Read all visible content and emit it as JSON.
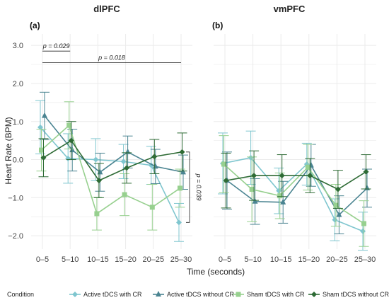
{
  "colors": {
    "active_with_cr": "#7fc6cf",
    "active_without_cr": "#4a8491",
    "sham_with_cr": "#97d08f",
    "sham_without_cr": "#2e6b35",
    "grid": "#ebebeb",
    "text": "#222222"
  },
  "legend": {
    "title": "Condition",
    "placement": "bottom"
  },
  "chart_data": {
    "type": "line",
    "grid": true,
    "ylabel": "Heart Rate (BPM)",
    "xlabel": "Time (seconds)",
    "categories": [
      "0–5",
      "5–10",
      "10–15",
      "15–20",
      "20–25",
      "25–30"
    ],
    "y_ticks": [
      "−2.0",
      "−1.0",
      "0.0",
      "1.0",
      "2.0",
      "3.0"
    ],
    "y_tick_values": [
      -2,
      -1,
      0,
      1,
      2,
      3
    ],
    "ylim": [
      -2.35,
      3.3
    ],
    "panels": [
      {
        "title": "dlPFC",
        "letter": "(a)",
        "series": [
          {
            "name": "Active tDCS with CR",
            "color_key": "active_with_cr",
            "marker": "diamond",
            "values": [
              0.85,
              0.03,
              0.0,
              -0.05,
              -0.15,
              -1.65
            ],
            "err": [
              0.7,
              0.65,
              0.55,
              0.45,
              0.5,
              0.5
            ]
          },
          {
            "name": "Active tDCS without CR",
            "color_key": "active_without_cr",
            "marker": "triangle",
            "values": [
              1.15,
              0.25,
              -0.33,
              0.2,
              -0.18,
              -0.33
            ],
            "err": [
              0.62,
              0.55,
              0.5,
              0.42,
              0.45,
              0.45
            ]
          },
          {
            "name": "Sham tDCS with CR",
            "color_key": "sham_with_cr",
            "marker": "square",
            "values": [
              0.25,
              0.9,
              -1.42,
              -0.92,
              -1.25,
              -0.75
            ],
            "err": [
              0.55,
              0.62,
              0.43,
              0.55,
              0.6,
              0.5
            ]
          },
          {
            "name": "Sham tDCS without CR",
            "color_key": "sham_without_cr",
            "marker": "diamond",
            "values": [
              0.05,
              0.5,
              -0.55,
              -0.22,
              0.08,
              0.2
            ],
            "err": [
              0.5,
              0.5,
              0.45,
              0.4,
              0.45,
              0.5
            ]
          }
        ],
        "annotations": [
          {
            "text": "p = 0.029",
            "from": "0–5",
            "to": "5–10",
            "y": 2.85
          },
          {
            "text": "p = 0.018",
            "from": "0–5",
            "to": "25–30",
            "y": 2.55
          },
          {
            "text": "p = 0.039",
            "at": "25–30",
            "y_from": 0.2,
            "y_to": -1.65,
            "vertical": true
          }
        ]
      },
      {
        "title": "vmPFC",
        "letter": "(b)",
        "series": [
          {
            "name": "Active tDCS with CR",
            "color_key": "active_with_cr",
            "marker": "diamond",
            "values": [
              -0.1,
              0.05,
              -0.82,
              -0.12,
              -1.58,
              -1.88
            ],
            "err": [
              0.8,
              0.7,
              0.6,
              0.55,
              0.55,
              0.5
            ]
          },
          {
            "name": "Active tDCS without CR",
            "color_key": "active_without_cr",
            "marker": "triangle",
            "values": [
              -0.55,
              -1.1,
              -1.12,
              -0.15,
              -1.45,
              -0.75
            ],
            "err": [
              0.75,
              0.6,
              0.55,
              0.55,
              0.5,
              0.5
            ]
          },
          {
            "name": "Sham tDCS with CR",
            "color_key": "sham_with_cr",
            "marker": "square",
            "values": [
              -0.12,
              -0.78,
              -0.95,
              -0.2,
              -1.2,
              -1.68
            ],
            "err": [
              0.75,
              0.85,
              0.6,
              0.6,
              0.55,
              0.6
            ]
          },
          {
            "name": "Sham tDCS without CR",
            "color_key": "sham_without_cr",
            "marker": "diamond",
            "values": [
              -0.55,
              -0.42,
              -0.42,
              -0.42,
              -0.78,
              -0.32
            ],
            "err": [
              0.72,
              0.65,
              0.55,
              0.45,
              0.5,
              0.45
            ]
          }
        ],
        "annotations": []
      }
    ]
  }
}
